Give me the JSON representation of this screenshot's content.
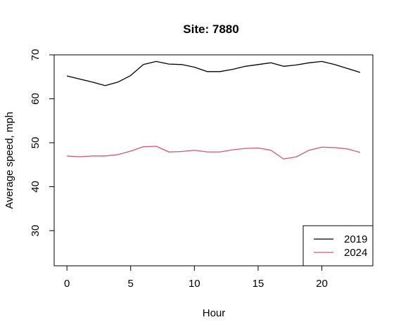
{
  "chart_data": {
    "type": "line",
    "title": "Site: 7880",
    "xlabel": "Hour",
    "ylabel": "Average speed, mph",
    "xlim": [
      -1,
      24
    ],
    "ylim": [
      22,
      70
    ],
    "xticks": [
      0,
      5,
      10,
      15,
      20
    ],
    "yticks": [
      30,
      40,
      50,
      60,
      70
    ],
    "x": [
      0,
      1,
      2,
      3,
      4,
      5,
      6,
      7,
      8,
      9,
      10,
      11,
      12,
      13,
      14,
      15,
      16,
      17,
      18,
      19,
      20,
      21,
      22,
      23
    ],
    "series": [
      {
        "name": "2019",
        "color": "#000000",
        "values": [
          65.2,
          64.5,
          63.8,
          63.0,
          63.8,
          65.3,
          67.8,
          68.5,
          67.9,
          67.8,
          67.2,
          66.2,
          66.2,
          66.7,
          67.4,
          67.8,
          68.2,
          67.4,
          67.7,
          68.2,
          68.5,
          67.8,
          66.9,
          66.0
        ]
      },
      {
        "name": "2024",
        "color": "#df536b",
        "values": [
          47.0,
          46.8,
          47.0,
          47.0,
          47.3,
          48.1,
          49.1,
          49.2,
          47.9,
          48.0,
          48.3,
          47.9,
          47.9,
          48.4,
          48.7,
          48.8,
          48.3,
          46.3,
          46.8,
          48.3,
          49.0,
          48.9,
          48.6,
          47.8
        ]
      }
    ],
    "legend_position": "bottom-right",
    "grid": false
  }
}
